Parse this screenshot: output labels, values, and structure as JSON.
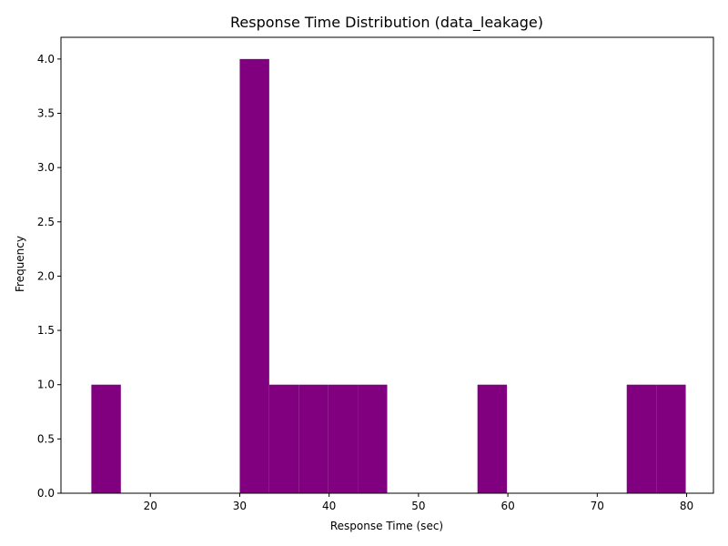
{
  "chart_data": {
    "type": "bar",
    "title": "Response Time Distribution (data_leakage)",
    "xlabel": "Response Time (sec)",
    "ylabel": "Frequency",
    "bar_color": "#800080",
    "xlim": [
      10.0,
      83.0
    ],
    "ylim": [
      0,
      4.2
    ],
    "x_ticks": [
      20,
      30,
      40,
      50,
      60,
      70,
      80
    ],
    "y_ticks": [
      0.0,
      0.5,
      1.0,
      1.5,
      2.0,
      2.5,
      3.0,
      3.5,
      4.0
    ],
    "y_tick_labels": [
      "0.0",
      "0.5",
      "1.0",
      "1.5",
      "2.0",
      "2.5",
      "3.0",
      "3.5",
      "4.0"
    ],
    "grid": false,
    "bins": [
      {
        "x0": 13.4,
        "x1": 16.7,
        "count": 1
      },
      {
        "x0": 30.0,
        "x1": 33.3,
        "count": 4
      },
      {
        "x0": 33.3,
        "x1": 36.6,
        "count": 1
      },
      {
        "x0": 36.6,
        "x1": 39.9,
        "count": 1
      },
      {
        "x0": 39.9,
        "x1": 43.2,
        "count": 1
      },
      {
        "x0": 43.2,
        "x1": 46.5,
        "count": 1
      },
      {
        "x0": 56.6,
        "x1": 59.9,
        "count": 1
      },
      {
        "x0": 73.3,
        "x1": 76.6,
        "count": 1
      },
      {
        "x0": 76.6,
        "x1": 79.9,
        "count": 1
      }
    ]
  }
}
